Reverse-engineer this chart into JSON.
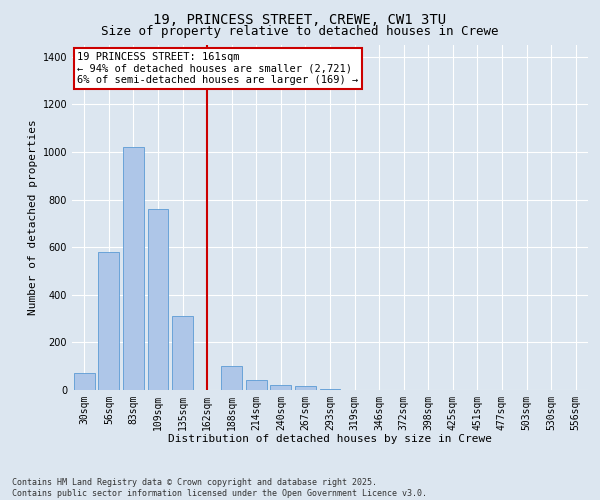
{
  "title": "19, PRINCESS STREET, CREWE, CW1 3TU",
  "subtitle": "Size of property relative to detached houses in Crewe",
  "xlabel": "Distribution of detached houses by size in Crewe",
  "ylabel": "Number of detached properties",
  "categories": [
    "30sqm",
    "56sqm",
    "83sqm",
    "109sqm",
    "135sqm",
    "162sqm",
    "188sqm",
    "214sqm",
    "240sqm",
    "267sqm",
    "293sqm",
    "319sqm",
    "346sqm",
    "372sqm",
    "398sqm",
    "425sqm",
    "451sqm",
    "477sqm",
    "503sqm",
    "530sqm",
    "556sqm"
  ],
  "values": [
    70,
    580,
    1020,
    760,
    310,
    0,
    100,
    44,
    22,
    15,
    5,
    0,
    0,
    0,
    0,
    0,
    0,
    0,
    0,
    0,
    0
  ],
  "bar_color": "#aec6e8",
  "bar_edge_color": "#5b9bd5",
  "vline_x": 5.0,
  "vline_color": "#cc0000",
  "annotation_text": "19 PRINCESS STREET: 161sqm\n← 94% of detached houses are smaller (2,721)\n6% of semi-detached houses are larger (169) →",
  "annotation_box_color": "#ffffff",
  "annotation_box_edge_color": "#cc0000",
  "ylim": [
    0,
    1450
  ],
  "yticks": [
    0,
    200,
    400,
    600,
    800,
    1000,
    1200,
    1400
  ],
  "background_color": "#dce6f0",
  "grid_color": "#ffffff",
  "footer_text": "Contains HM Land Registry data © Crown copyright and database right 2025.\nContains public sector information licensed under the Open Government Licence v3.0.",
  "title_fontsize": 10,
  "subtitle_fontsize": 9,
  "axis_label_fontsize": 8,
  "tick_fontsize": 7,
  "annotation_fontsize": 7.5,
  "footer_fontsize": 6
}
